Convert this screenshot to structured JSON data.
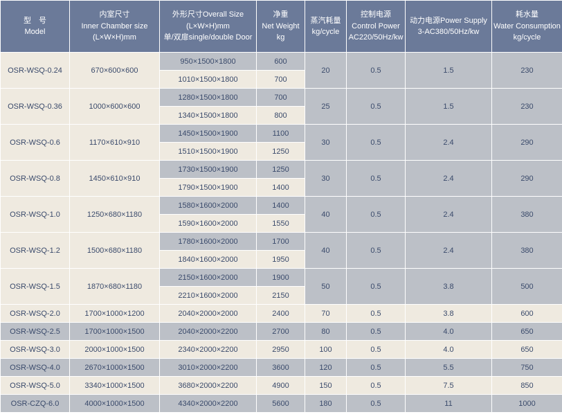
{
  "headers": {
    "model": "型　号\nModel",
    "inner": "内室尺寸\nInner Chamber size\n(L×W×H)mm",
    "overall": "外形尺寸Overall Size\n(L×W×H)mm\n单/双扉single/double Door",
    "weight": "净重\nNet Weight\nkg",
    "steam": "蒸汽耗量\nkg/cycle",
    "control": "控制电源\nControl Power\nAC220/50Hz/kw",
    "power": "动力电源Power Supply\n3-AC380/50Hz/kw",
    "water": "耗水量\nWater Consumption\nkg/cycle"
  },
  "dualRows": [
    {
      "model": "OSR-WSQ-0.24",
      "inner": "670×600×600",
      "o1": "950×1500×1800",
      "w1": "600",
      "o2": "1010×1500×1800",
      "w2": "700",
      "steam": "20",
      "ctrl": "0.5",
      "pwr": "1.5",
      "water": "230"
    },
    {
      "model": "OSR-WSQ-0.36",
      "inner": "1000×600×600",
      "o1": "1280×1500×1800",
      "w1": "700",
      "o2": "1340×1500×1800",
      "w2": "800",
      "steam": "25",
      "ctrl": "0.5",
      "pwr": "1.5",
      "water": "230"
    },
    {
      "model": "OSR-WSQ-0.6",
      "inner": "1170×610×910",
      "o1": "1450×1500×1900",
      "w1": "1100",
      "o2": "1510×1500×1900",
      "w2": "1250",
      "steam": "30",
      "ctrl": "0.5",
      "pwr": "2.4",
      "water": "290"
    },
    {
      "model": "OSR-WSQ-0.8",
      "inner": "1450×610×910",
      "o1": "1730×1500×1900",
      "w1": "1250",
      "o2": "1790×1500×1900",
      "w2": "1400",
      "steam": "30",
      "ctrl": "0.5",
      "pwr": "2.4",
      "water": "290"
    },
    {
      "model": "OSR-WSQ-1.0",
      "inner": "1250×680×1180",
      "o1": "1580×1600×2000",
      "w1": "1400",
      "o2": "1590×1600×2000",
      "w2": "1550",
      "steam": "40",
      "ctrl": "0.5",
      "pwr": "2.4",
      "water": "380"
    },
    {
      "model": "OSR-WSQ-1.2",
      "inner": "1500×680×1180",
      "o1": "1780×1600×2000",
      "w1": "1700",
      "o2": "1840×1600×2000",
      "w2": "1950",
      "steam": "40",
      "ctrl": "0.5",
      "pwr": "2.4",
      "water": "380"
    },
    {
      "model": "OSR-WSQ-1.5",
      "inner": "1870×680×1180",
      "o1": "2150×1600×2000",
      "w1": "1900",
      "o2": "2210×1600×2000",
      "w2": "2150",
      "steam": "50",
      "ctrl": "0.5",
      "pwr": "3.8",
      "water": "500"
    }
  ],
  "singleRows": [
    {
      "model": "OSR-WSQ-2.0",
      "inner": "1700×1000×1200",
      "overall": "2040×2000×2000",
      "weight": "2400",
      "steam": "70",
      "ctrl": "0.5",
      "pwr": "3.8",
      "water": "600",
      "shade": "beige"
    },
    {
      "model": "OSR-WSQ-2.5",
      "inner": "1700×1000×1500",
      "overall": "2040×2000×2200",
      "weight": "2700",
      "steam": "80",
      "ctrl": "0.5",
      "pwr": "4.0",
      "water": "650",
      "shade": "gray"
    },
    {
      "model": "OSR-WSQ-3.0",
      "inner": "2000×1000×1500",
      "overall": "2340×2000×2200",
      "weight": "2950",
      "steam": "100",
      "ctrl": "0.5",
      "pwr": "4.0",
      "water": "650",
      "shade": "beige"
    },
    {
      "model": "OSR-WSQ-4.0",
      "inner": "2670×1000×1500",
      "overall": "3010×2000×2200",
      "weight": "3600",
      "steam": "120",
      "ctrl": "0.5",
      "pwr": "5.5",
      "water": "750",
      "shade": "gray"
    },
    {
      "model": "OSR-WSQ-5.0",
      "inner": "3340×1000×1500",
      "overall": "3680×2000×2200",
      "weight": "4900",
      "steam": "150",
      "ctrl": "0.5",
      "pwr": "7.5",
      "water": "850",
      "shade": "beige"
    },
    {
      "model": "OSR-CZQ-6.0",
      "inner": "4000×1000×1500",
      "overall": "4340×2000×2200",
      "weight": "5600",
      "steam": "180",
      "ctrl": "0.5",
      "pwr": "11",
      "water": "1000",
      "shade": "gray"
    }
  ],
  "colors": {
    "header_bg": "#6b7a99",
    "header_text": "#ffffff",
    "gray": "#bcc0c7",
    "beige": "#efeae0",
    "text": "#3a4a6b",
    "border": "#ffffff"
  }
}
